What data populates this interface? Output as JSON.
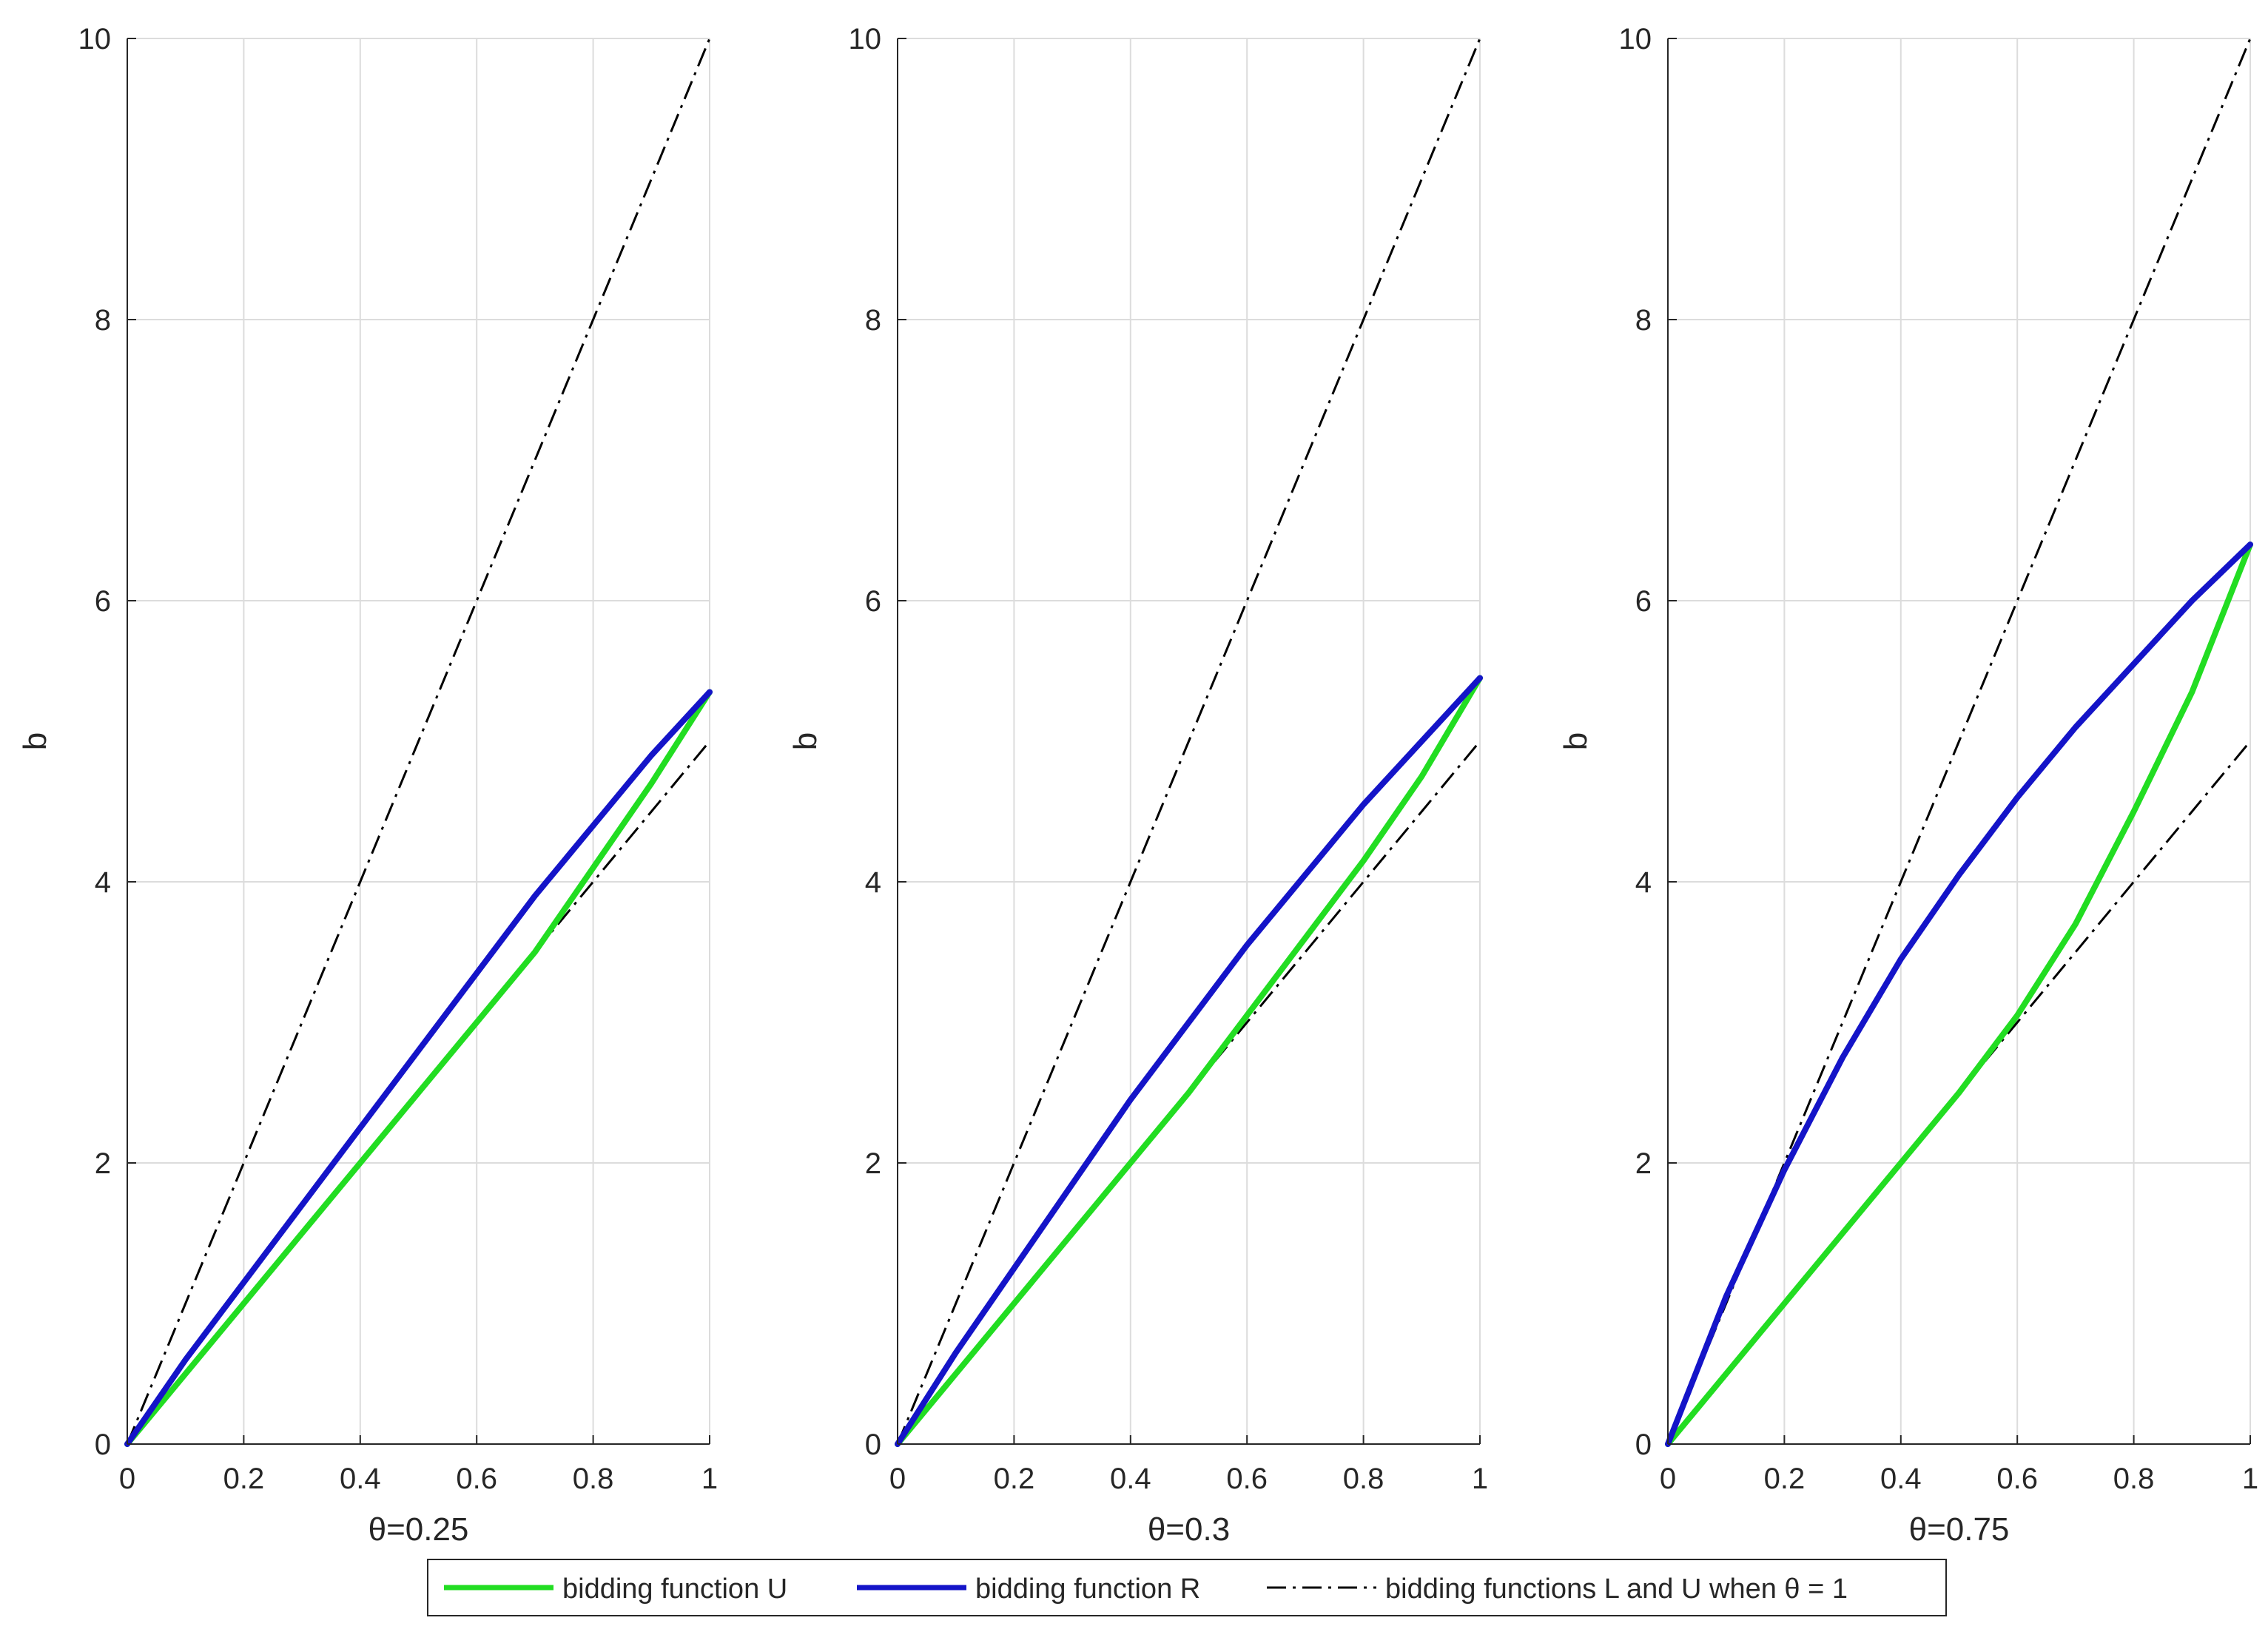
{
  "chart_data": [
    {
      "type": "line",
      "xlabel": "θ=0.25",
      "ylabel": "b",
      "xlim": [
        0,
        1
      ],
      "ylim": [
        0,
        10
      ],
      "xticks": [
        "0",
        "0.2",
        "0.4",
        "0.6",
        "0.8",
        "1"
      ],
      "yticks": [
        "0",
        "2",
        "4",
        "6",
        "8",
        "10"
      ],
      "grid": true,
      "x": [
        0,
        0.1,
        0.2,
        0.3,
        0.4,
        0.5,
        0.6,
        0.7,
        0.8,
        0.9,
        1.0
      ],
      "series": [
        {
          "name": "bidding function U",
          "color": "#22dd22",
          "style": "solid",
          "values": [
            0,
            0.5,
            1.0,
            1.5,
            2.0,
            2.5,
            3.0,
            3.5,
            4.1,
            4.7,
            5.35
          ]
        },
        {
          "name": "bidding function R",
          "color": "#1414c8",
          "style": "solid",
          "values": [
            0,
            0.6,
            1.15,
            1.7,
            2.25,
            2.8,
            3.35,
            3.9,
            4.4,
            4.9,
            5.35
          ]
        },
        {
          "name": "bidding functions L and U when θ = 1",
          "color": "#000000",
          "style": "dashdot",
          "values": [
            0,
            1,
            2,
            3,
            4,
            5,
            6,
            7,
            8,
            9,
            10
          ]
        },
        {
          "name": "bidding functions L and U when θ = 1",
          "color": "#000000",
          "style": "dashdot",
          "values": [
            0,
            0.5,
            1,
            1.5,
            2,
            2.5,
            3,
            3.5,
            4,
            4.5,
            5
          ]
        }
      ]
    },
    {
      "type": "line",
      "xlabel": "θ=0.3",
      "ylabel": "b",
      "xlim": [
        0,
        1
      ],
      "ylim": [
        0,
        10
      ],
      "xticks": [
        "0",
        "0.2",
        "0.4",
        "0.6",
        "0.8",
        "1"
      ],
      "yticks": [
        "0",
        "2",
        "4",
        "6",
        "8",
        "10"
      ],
      "grid": true,
      "x": [
        0,
        0.1,
        0.2,
        0.3,
        0.4,
        0.5,
        0.6,
        0.7,
        0.8,
        0.9,
        1.0
      ],
      "series": [
        {
          "name": "bidding function U",
          "color": "#22dd22",
          "style": "solid",
          "values": [
            0,
            0.5,
            1.0,
            1.5,
            2.0,
            2.5,
            3.05,
            3.6,
            4.15,
            4.75,
            5.45
          ]
        },
        {
          "name": "bidding function R",
          "color": "#1414c8",
          "style": "solid",
          "values": [
            0,
            0.65,
            1.25,
            1.85,
            2.45,
            3.0,
            3.55,
            4.05,
            4.55,
            5.0,
            5.45
          ]
        },
        {
          "name": "bidding functions L and U when θ = 1",
          "color": "#000000",
          "style": "dashdot",
          "values": [
            0,
            1,
            2,
            3,
            4,
            5,
            6,
            7,
            8,
            9,
            10
          ]
        },
        {
          "name": "bidding functions L and U when θ = 1",
          "color": "#000000",
          "style": "dashdot",
          "values": [
            0,
            0.5,
            1,
            1.5,
            2,
            2.5,
            3,
            3.5,
            4,
            4.5,
            5
          ]
        }
      ]
    },
    {
      "type": "line",
      "xlabel": "θ=0.75",
      "ylabel": "b",
      "xlim": [
        0,
        1
      ],
      "ylim": [
        0,
        10
      ],
      "xticks": [
        "0",
        "0.2",
        "0.4",
        "0.6",
        "0.8",
        "1"
      ],
      "yticks": [
        "0",
        "2",
        "4",
        "6",
        "8",
        "10"
      ],
      "grid": true,
      "x": [
        0,
        0.1,
        0.2,
        0.3,
        0.4,
        0.5,
        0.6,
        0.7,
        0.8,
        0.9,
        1.0
      ],
      "series": [
        {
          "name": "bidding function U",
          "color": "#22dd22",
          "style": "solid",
          "values": [
            0,
            0.5,
            1.0,
            1.5,
            2.0,
            2.5,
            3.05,
            3.7,
            4.5,
            5.35,
            6.4
          ]
        },
        {
          "name": "bidding function R",
          "color": "#1414c8",
          "style": "solid",
          "values": [
            0,
            1.05,
            1.95,
            2.75,
            3.45,
            4.05,
            4.6,
            5.1,
            5.55,
            6.0,
            6.4
          ]
        },
        {
          "name": "bidding functions L and U when θ = 1",
          "color": "#000000",
          "style": "dashdot",
          "values": [
            0,
            1,
            2,
            3,
            4,
            5,
            6,
            7,
            8,
            9,
            10
          ]
        },
        {
          "name": "bidding functions L and U when θ = 1",
          "color": "#000000",
          "style": "dashdot",
          "values": [
            0,
            0.5,
            1,
            1.5,
            2,
            2.5,
            3,
            3.5,
            4,
            4.5,
            5
          ]
        }
      ]
    }
  ],
  "legend": {
    "placement": "bottom-center",
    "items": [
      {
        "label": "bidding function U",
        "color": "#22dd22",
        "style": "solid"
      },
      {
        "label": "bidding function R",
        "color": "#1414c8",
        "style": "solid"
      },
      {
        "label": "bidding functions L and U when θ = 1",
        "color": "#000000",
        "style": "dashdot"
      }
    ]
  }
}
